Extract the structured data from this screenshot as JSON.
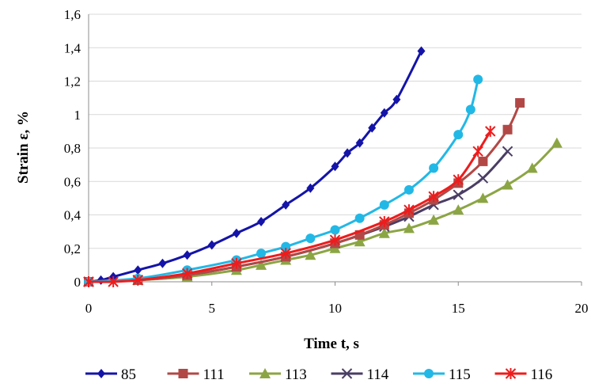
{
  "chart_data": {
    "type": "line",
    "xlabel": "Time  t, s",
    "ylabel": "Strain ε, %",
    "xlim": [
      0,
      20
    ],
    "ylim": [
      0,
      1.6
    ],
    "x_ticks": [
      "0",
      "5",
      "10",
      "15",
      "20"
    ],
    "y_ticks": [
      "0",
      "0,2",
      "0,4",
      "0,6",
      "0,8",
      "1",
      "1,2",
      "1,4",
      "1,6"
    ],
    "grid": "horizontal",
    "legend_position": "bottom",
    "series": [
      {
        "name": "85",
        "color": "#1414a8",
        "marker": "diamond",
        "x": [
          0,
          0.5,
          1,
          2,
          3,
          4,
          5,
          6,
          7,
          8,
          9,
          10,
          10.5,
          11,
          11.5,
          12,
          12.5,
          13.5
        ],
        "y": [
          0,
          0.01,
          0.03,
          0.07,
          0.11,
          0.16,
          0.22,
          0.29,
          0.36,
          0.46,
          0.56,
          0.69,
          0.77,
          0.83,
          0.92,
          1.01,
          1.09,
          1.38
        ]
      },
      {
        "name": "111",
        "color": "#b24846",
        "marker": "square",
        "x": [
          0,
          2,
          4,
          6,
          8,
          10,
          11,
          12,
          13,
          14,
          15,
          16,
          17,
          17.5
        ],
        "y": [
          0,
          0.01,
          0.04,
          0.09,
          0.15,
          0.23,
          0.28,
          0.34,
          0.41,
          0.49,
          0.59,
          0.72,
          0.91,
          1.07
        ]
      },
      {
        "name": "113",
        "color": "#8ca544",
        "marker": "triangle",
        "x": [
          0,
          2,
          4,
          6,
          7,
          8,
          9,
          10,
          11,
          12,
          13,
          14,
          15,
          16,
          17,
          18,
          19
        ],
        "y": [
          0,
          0.01,
          0.03,
          0.07,
          0.1,
          0.13,
          0.16,
          0.2,
          0.24,
          0.29,
          0.32,
          0.37,
          0.43,
          0.5,
          0.58,
          0.68,
          0.83
        ]
      },
      {
        "name": "114",
        "color": "#4a3e64",
        "marker": "x",
        "x": [
          0,
          2,
          4,
          6,
          8,
          10,
          12,
          13,
          14,
          15,
          16,
          17
        ],
        "y": [
          0,
          0.01,
          0.04,
          0.09,
          0.15,
          0.23,
          0.33,
          0.39,
          0.46,
          0.52,
          0.62,
          0.78
        ]
      },
      {
        "name": "115",
        "color": "#22b8e6",
        "marker": "circle",
        "x": [
          0,
          2,
          4,
          6,
          7,
          8,
          9,
          10,
          11,
          12,
          13,
          14,
          15,
          15.5,
          15.8
        ],
        "y": [
          0,
          0.02,
          0.07,
          0.13,
          0.17,
          0.21,
          0.26,
          0.31,
          0.38,
          0.46,
          0.55,
          0.68,
          0.88,
          1.03,
          1.21
        ]
      },
      {
        "name": "116",
        "color": "#ee1c1c",
        "marker": "asterisk",
        "x": [
          0,
          1,
          2,
          4,
          6,
          8,
          10,
          12,
          13,
          14,
          15,
          15.8,
          16.3
        ],
        "y": [
          0,
          0,
          0.01,
          0.05,
          0.11,
          0.17,
          0.25,
          0.36,
          0.43,
          0.51,
          0.61,
          0.78,
          0.9
        ]
      }
    ]
  }
}
